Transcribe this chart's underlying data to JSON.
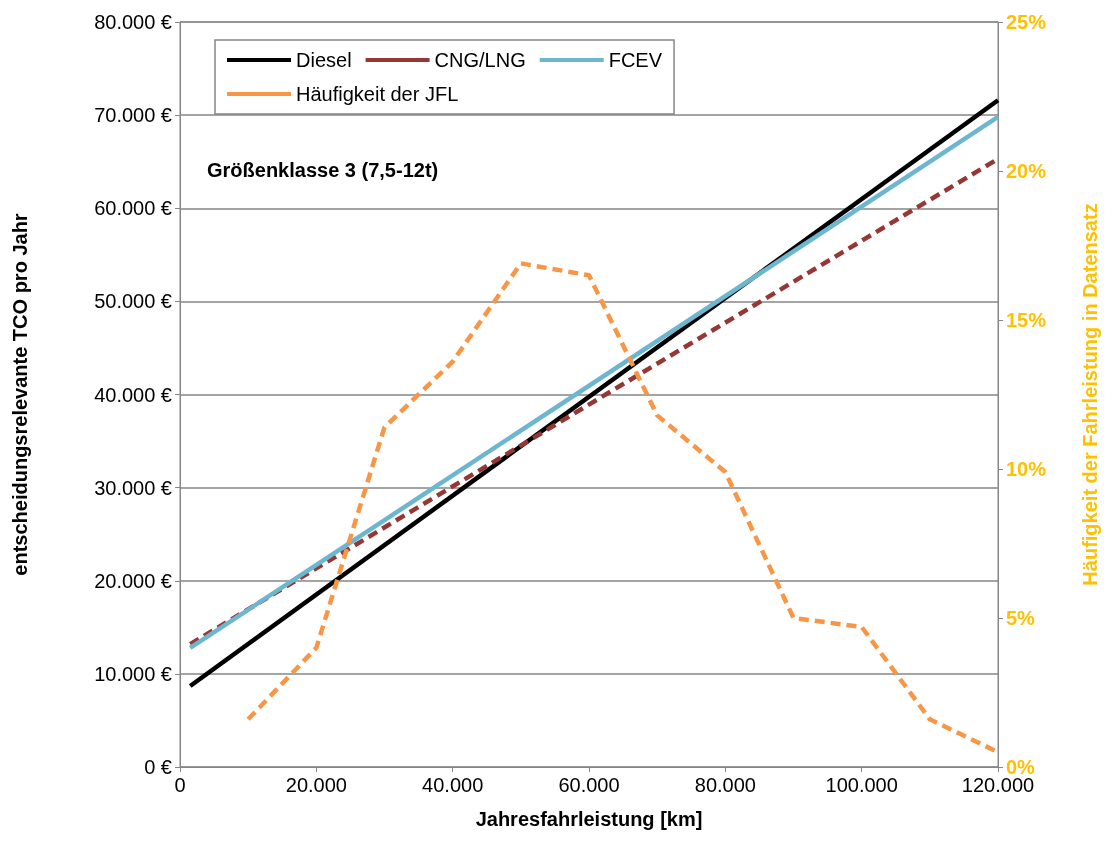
{
  "chart_data": {
    "type": "line",
    "xlabel": "Jahresfahrleistung [km]",
    "ylabel": "entscheidungsrelevante TCO pro Jahr",
    "y2label": "Häufigkeit der Fahrleistung in Datensatz",
    "annotations": [
      "Größenklasse 3 (7,5-12t)"
    ],
    "xlim": [
      0,
      120000
    ],
    "xticks": [
      0,
      {
        "value": 20000,
        "label": "20.000"
      },
      {
        "value": 40000,
        "label": "40.000"
      },
      {
        "value": 60000,
        "label": "60.000"
      },
      {
        "value": 80000,
        "label": "80.000"
      },
      {
        "value": 100000,
        "label": "100.000"
      },
      {
        "value": 120000,
        "label": "120.000"
      }
    ],
    "ylim": [
      0,
      80000
    ],
    "yticks": [
      {
        "value": 0,
        "label": "0 €"
      },
      {
        "value": 10000,
        "label": "10.000 €"
      },
      {
        "value": 20000,
        "label": "20.000 €"
      },
      {
        "value": 30000,
        "label": "30.000 €"
      },
      {
        "value": 40000,
        "label": "40.000 €"
      },
      {
        "value": 50000,
        "label": "50.000 €"
      },
      {
        "value": 60000,
        "label": "60.000 €"
      },
      {
        "value": 70000,
        "label": "70.000 €"
      },
      {
        "value": 80000,
        "label": "80.000 €"
      }
    ],
    "y2lim": [
      0,
      25
    ],
    "y2ticks": [
      {
        "value": 0,
        "label": "0%"
      },
      {
        "value": 5,
        "label": "5%"
      },
      {
        "value": 10,
        "label": "10%"
      },
      {
        "value": 15,
        "label": "15%"
      },
      {
        "value": 20,
        "label": "20%"
      },
      {
        "value": 25,
        "label": "25%"
      }
    ],
    "grid": "y",
    "legend": "top left",
    "marker": "none",
    "series": [
      {
        "name": "Diesel",
        "color": "#000000",
        "line_style": "solid",
        "x": [
          1500,
          120000
        ],
        "values": [
          8700,
          71600
        ]
      },
      {
        "name": "CNG/LNG",
        "color": "#953735",
        "line_style": "dashed",
        "x": [
          1500,
          120000
        ],
        "values": [
          13200,
          65300
        ]
      },
      {
        "name": "FCEV",
        "color": "#6db6d0",
        "line_style": "solid",
        "x": [
          1500,
          120000
        ],
        "values": [
          12800,
          69800
        ]
      },
      {
        "name": "Häufigkeit der JFL",
        "color": "#f79646",
        "line_style": "dashed",
        "axis": "y2",
        "x": [
          10000,
          20000,
          30000,
          40000,
          50000,
          60000,
          70000,
          80000,
          90000,
          100000,
          110000,
          120000
        ],
        "values": [
          1.6,
          4.0,
          11.4,
          13.6,
          16.9,
          16.5,
          11.8,
          9.9,
          5.0,
          4.7,
          1.6,
          0.5
        ]
      }
    ]
  }
}
